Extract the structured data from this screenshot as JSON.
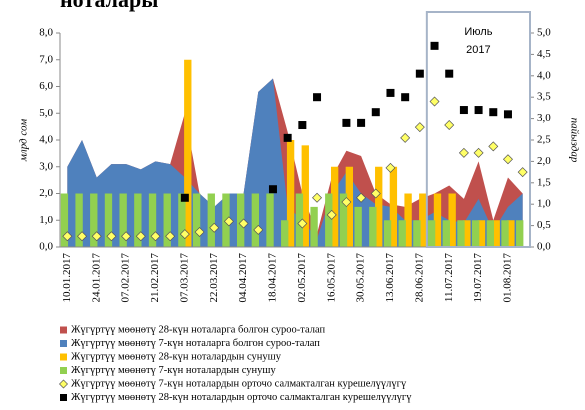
{
  "chart_data": {
    "type": "combo",
    "title": "ноталары",
    "y_label": "млрд сом",
    "y2_label": "пайыздар",
    "annotation": "Июль\n2017",
    "categories": [
      "10.01.2017",
      null,
      "24.01.2017",
      null,
      "07.02.2017",
      null,
      "21.02.2017",
      null,
      "07.03.2017",
      null,
      "22.03.2017",
      null,
      "04.04.2017",
      null,
      "18.04.2017",
      null,
      "02.05.2017",
      null,
      "16.05.2017",
      null,
      "30.05.2017",
      null,
      "13.06.2017",
      null,
      "28.06.2017",
      null,
      "11.07.2017",
      null,
      "19.07.2017",
      null,
      "01.08.2017",
      null
    ],
    "ylim": [
      0,
      8
    ],
    "yticks": [
      {
        "value": 0,
        "label": "0,0"
      },
      {
        "value": 1,
        "label": "1,0"
      },
      {
        "value": 2,
        "label": "2,0"
      },
      {
        "value": 3,
        "label": "3,0"
      },
      {
        "value": 4,
        "label": "4,0"
      },
      {
        "value": 5,
        "label": "5,0"
      },
      {
        "value": 6,
        "label": "6,0"
      },
      {
        "value": 7,
        "label": "7,0"
      },
      {
        "value": 8,
        "label": "8,0"
      }
    ],
    "y2lim": [
      0,
      5
    ],
    "y2ticks": [
      {
        "value": 0,
        "label": "0,0"
      },
      {
        "value": 0.5,
        "label": "0,5"
      },
      {
        "value": 1,
        "label": "1,0"
      },
      {
        "value": 1.5,
        "label": "1,5"
      },
      {
        "value": 2,
        "label": "2,0"
      },
      {
        "value": 2.5,
        "label": "2,5"
      },
      {
        "value": 3,
        "label": "3,0"
      },
      {
        "value": 3.5,
        "label": "3,5"
      },
      {
        "value": 4,
        "label": "4,0"
      },
      {
        "value": 4.5,
        "label": "4,5"
      },
      {
        "value": 5,
        "label": "5,0"
      }
    ],
    "series": [
      {
        "name": "Жүгүртүү мөөнөтү 28-күн ноталарга болгон суроо-талап",
        "kind": "area",
        "color": "#c0504d",
        "values": [
          3.0,
          4.0,
          2.6,
          3.1,
          3.1,
          2.9,
          3.2,
          3.1,
          5.0,
          2.0,
          1.5,
          2.0,
          2.0,
          5.8,
          6.3,
          4.3,
          2.0,
          0.5,
          2.6,
          3.6,
          3.4,
          2.0,
          1.6,
          1.5,
          1.8,
          2.0,
          2.3,
          1.8,
          3.2,
          1.0,
          2.6,
          2.0
        ]
      },
      {
        "name": "Жүгүртүү мөөнөтү 7-күн ноталарга болгон суроо-талап",
        "kind": "area",
        "color": "#4f81bd",
        "values": [
          3.0,
          4.0,
          2.6,
          3.1,
          3.1,
          2.9,
          3.2,
          3.1,
          2.6,
          2.0,
          1.5,
          2.0,
          2.0,
          5.8,
          6.3,
          1.5,
          1.0,
          0.3,
          2.0,
          2.8,
          2.0,
          1.6,
          1.5,
          1.0,
          1.0,
          1.3,
          1.0,
          0.9,
          1.8,
          0.6,
          1.5,
          2.0
        ]
      },
      {
        "name": "Жүгүртүү мөөнөтү 28-күн ноталардын сунушу",
        "kind": "bar",
        "color": "#ffc000",
        "values": [
          null,
          null,
          null,
          null,
          null,
          null,
          null,
          null,
          7.0,
          null,
          null,
          null,
          null,
          null,
          null,
          4.0,
          3.8,
          null,
          3.0,
          3.0,
          null,
          3.0,
          3.0,
          2.0,
          2.0,
          2.0,
          2.0,
          1.0,
          1.0,
          1.0,
          1.0,
          null
        ]
      },
      {
        "name": "Жүгүртүү мөөнөтү 7-күн ноталардын сунушу",
        "kind": "bar",
        "color": "#92d050",
        "values": [
          2,
          2,
          2,
          2,
          2,
          2,
          2,
          2,
          2,
          2,
          2,
          2,
          2,
          2,
          2,
          1.0,
          2,
          1.5,
          2,
          2,
          1.5,
          1.5,
          1.0,
          1.0,
          1.0,
          1.0,
          1.0,
          1.0,
          1.0,
          1.0,
          1.0,
          1.0
        ]
      },
      {
        "name": "Жүгүртүү мөөнөтү 7-күн ноталардын орточо салмакталган курешелүүлүгү",
        "kind": "diamond",
        "axis": "y2",
        "color": "#ffff66",
        "values": [
          0.25,
          0.25,
          0.25,
          0.25,
          0.25,
          0.25,
          0.25,
          0.25,
          0.3,
          0.35,
          0.45,
          0.6,
          0.55,
          0.4,
          null,
          null,
          0.55,
          1.15,
          0.75,
          1.05,
          1.15,
          1.25,
          1.85,
          2.55,
          2.8,
          3.4,
          2.85,
          2.2,
          2.2,
          2.35,
          2.05,
          1.75
        ]
      },
      {
        "name": "Жүгүртүү мөөнөтү 28-күн ноталардын орточо салмакталган курешелүүлүгү",
        "kind": "square",
        "axis": "y2",
        "color": "#000000",
        "values": [
          null,
          null,
          null,
          null,
          null,
          null,
          null,
          null,
          1.15,
          null,
          null,
          null,
          null,
          null,
          1.35,
          2.55,
          2.85,
          3.5,
          null,
          2.9,
          2.9,
          3.15,
          3.6,
          3.5,
          4.05,
          4.7,
          4.05,
          3.2,
          3.2,
          3.15,
          3.1,
          null
        ]
      }
    ]
  }
}
